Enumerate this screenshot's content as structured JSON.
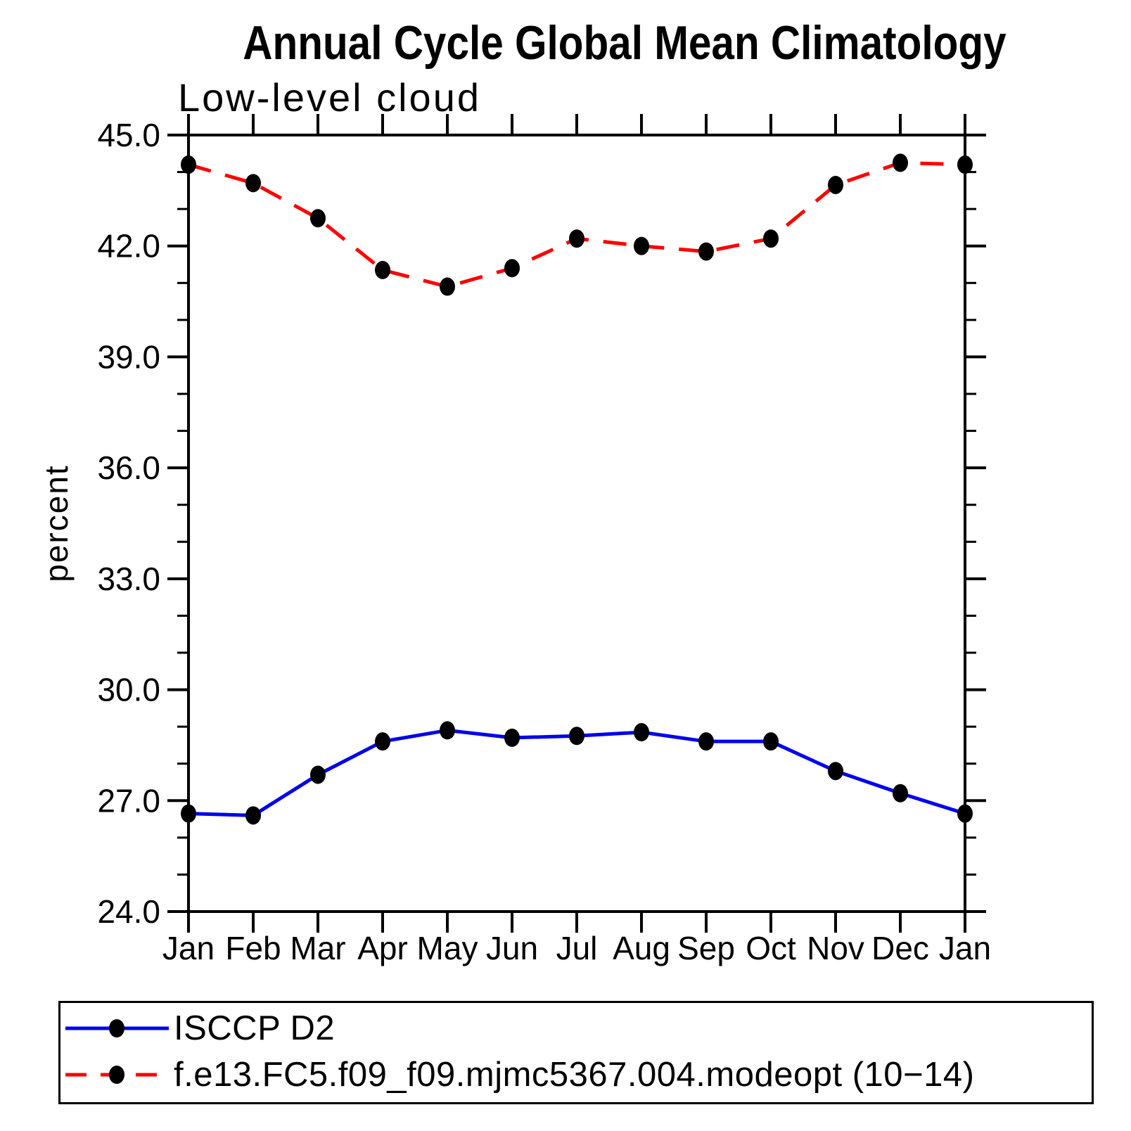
{
  "title": "Annual Cycle Global Mean Climatology",
  "subtitle": "Low-level cloud",
  "chart_data": {
    "type": "line",
    "x_categories": [
      "Jan",
      "Feb",
      "Mar",
      "Apr",
      "May",
      "Jun",
      "Jul",
      "Aug",
      "Sep",
      "Oct",
      "Nov",
      "Dec",
      "Jan"
    ],
    "series": [
      {
        "name": "ISCCP D2",
        "color": "#0000EE",
        "line_style": "solid",
        "marker": "filled-circle",
        "marker_color": "#000000",
        "values": [
          26.65,
          26.6,
          27.7,
          28.6,
          28.9,
          28.7,
          28.75,
          28.85,
          28.6,
          28.6,
          27.8,
          27.2,
          26.65
        ]
      },
      {
        "name": "f.e13.FC5.f09_f09.mjmc5367.004.modeopt (10−14)",
        "color": "#FF0000",
        "line_style": "dashed",
        "marker": "filled-circle",
        "marker_color": "#000000",
        "values": [
          44.2,
          43.7,
          42.75,
          41.35,
          40.9,
          41.4,
          42.2,
          42.0,
          41.85,
          42.2,
          43.65,
          44.25,
          44.2
        ]
      }
    ],
    "xlabel": "",
    "ylabel": "percent",
    "ylim": [
      24.0,
      45.0
    ],
    "y_major_ticks": [
      24,
      27,
      30,
      33,
      36,
      39,
      42,
      45
    ],
    "y_tick_labels": [
      "24.0",
      "27.0",
      "30.0",
      "33.0",
      "36.0",
      "39.0",
      "42.0",
      "45.0"
    ],
    "y_minor_tick_step": 1.0,
    "grid": false,
    "legend_position": "bottom-box",
    "axis_color": "#000000"
  }
}
